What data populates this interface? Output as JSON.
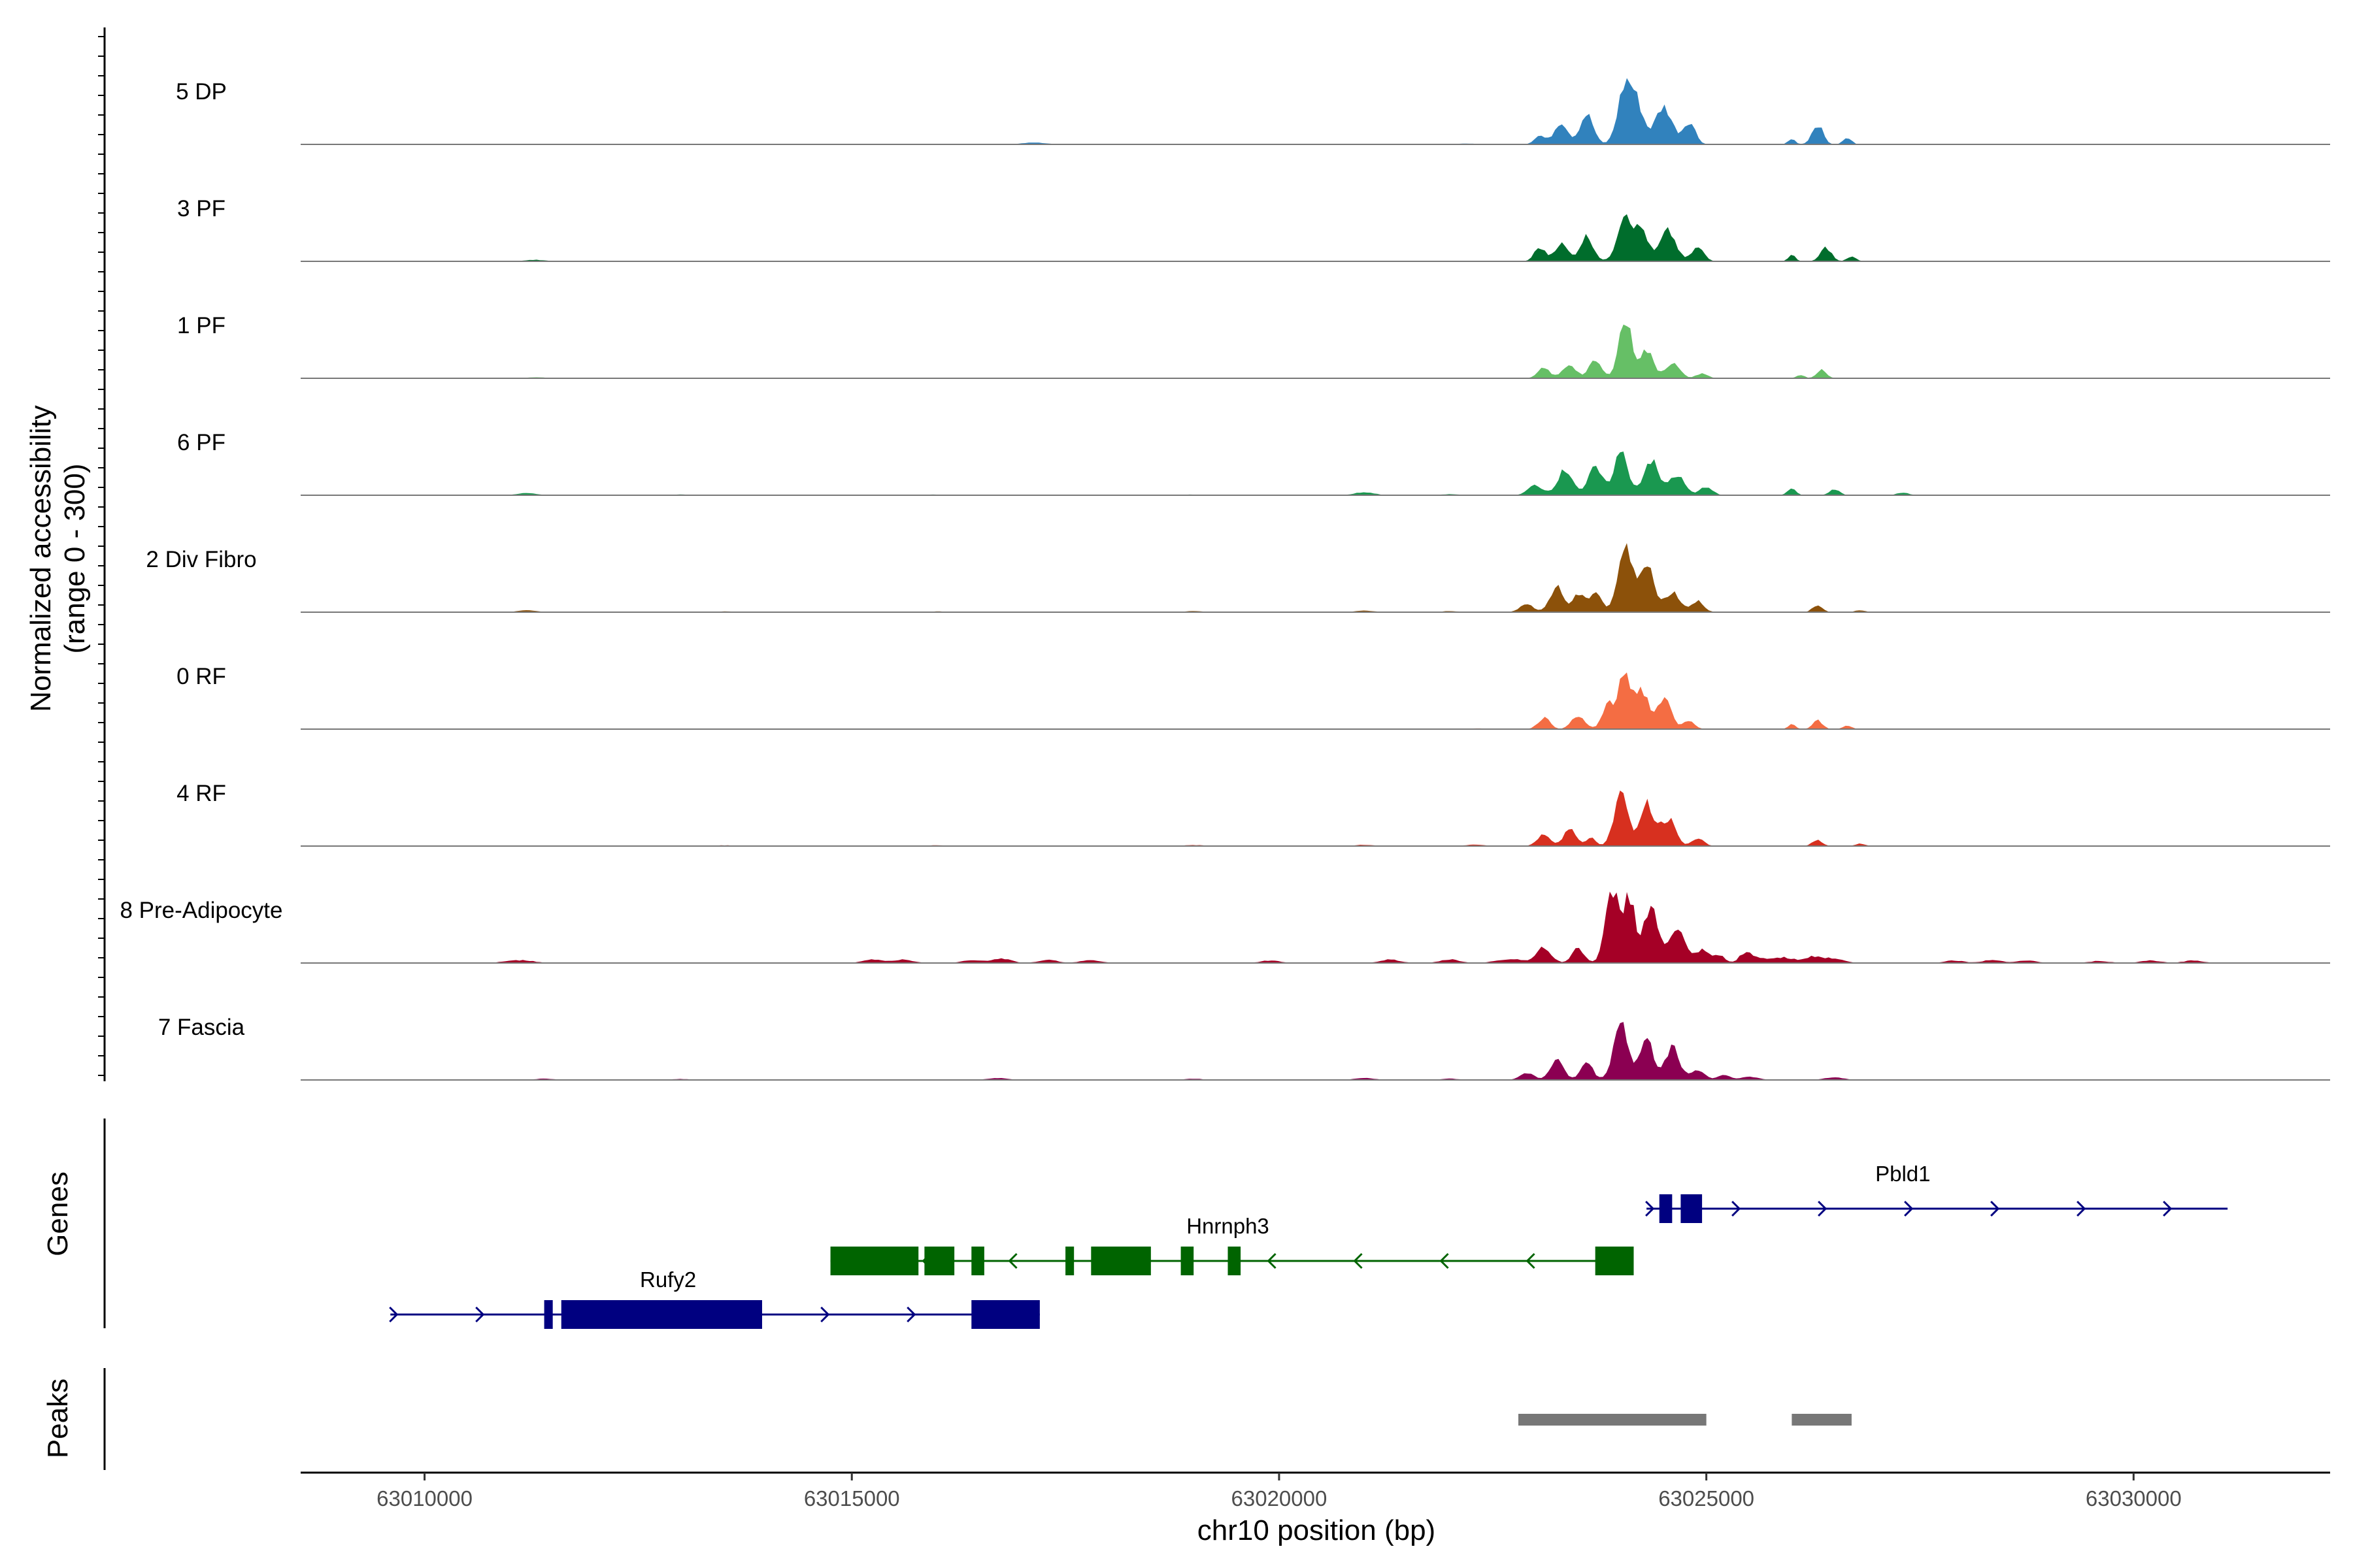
{
  "chart_data": {
    "type": "coverage",
    "ylabel": [
      "Normalized accessibility",
      "(range 0 - 300)"
    ],
    "y_range": [
      0,
      300
    ],
    "xlabel": "chr10 position (bp)",
    "x_range": [
      63008550,
      63032300
    ],
    "x_ticks": [
      63010000,
      63015000,
      63020000,
      63025000,
      63030000
    ],
    "tracks": [
      {
        "name": "5 DP",
        "color": "#3182bd",
        "baseline": [
          [
            63010000,
            1
          ],
          [
            63013500,
            1
          ],
          [
            63017000,
            2
          ],
          [
            63017150,
            6
          ],
          [
            63017300,
            1
          ],
          [
            63021000,
            2
          ],
          [
            63022200,
            3
          ]
        ],
        "peaks": [
          [
            63023050,
            35,
            90
          ],
          [
            63023300,
            90,
            110
          ],
          [
            63023600,
            120,
            110
          ],
          [
            63024050,
            230,
            120
          ],
          [
            63024200,
            130,
            110
          ],
          [
            63024500,
            150,
            140
          ],
          [
            63024800,
            90,
            100
          ],
          [
            63026000,
            22,
            60
          ],
          [
            63026300,
            80,
            90
          ],
          [
            63026650,
            25,
            70
          ]
        ]
      },
      {
        "name": "3 PF",
        "color": "#006d2c",
        "baseline": [
          [
            63010000,
            1
          ],
          [
            63011300,
            6
          ],
          [
            63013500,
            1
          ],
          [
            63016000,
            2
          ],
          [
            63019000,
            1
          ],
          [
            63022000,
            2
          ]
        ],
        "peaks": [
          [
            63023050,
            55,
            90
          ],
          [
            63023300,
            70,
            110
          ],
          [
            63023600,
            100,
            110
          ],
          [
            63024050,
            200,
            120
          ],
          [
            63024250,
            120,
            100
          ],
          [
            63024550,
            120,
            130
          ],
          [
            63024900,
            55,
            100
          ],
          [
            63026000,
            25,
            60
          ],
          [
            63026400,
            55,
            90
          ],
          [
            63026700,
            20,
            70
          ]
        ]
      },
      {
        "name": "1 PF",
        "color": "#66bf66",
        "baseline": [
          [
            63010000,
            2
          ],
          [
            63011300,
            4
          ],
          [
            63013500,
            2
          ],
          [
            63016000,
            2
          ],
          [
            63019000,
            2
          ],
          [
            63021000,
            2
          ]
        ],
        "peaks": [
          [
            63023100,
            40,
            100
          ],
          [
            63023400,
            55,
            110
          ],
          [
            63023700,
            70,
            100
          ],
          [
            63024050,
            230,
            110
          ],
          [
            63024300,
            110,
            110
          ],
          [
            63024600,
            60,
            120
          ],
          [
            63024950,
            20,
            90
          ],
          [
            63026100,
            15,
            60
          ],
          [
            63026350,
            35,
            80
          ]
        ]
      },
      {
        "name": "6 PF",
        "color": "#1a9850",
        "baseline": [
          [
            63010000,
            2
          ],
          [
            63011200,
            8
          ],
          [
            63013000,
            3
          ],
          [
            63016000,
            3
          ],
          [
            63019000,
            3
          ],
          [
            63021000,
            12
          ],
          [
            63022000,
            4
          ]
        ],
        "peaks": [
          [
            63023000,
            40,
            120
          ],
          [
            63023350,
            100,
            130
          ],
          [
            63023700,
            110,
            110
          ],
          [
            63024000,
            170,
            120
          ],
          [
            63024350,
            140,
            120
          ],
          [
            63024650,
            80,
            130
          ],
          [
            63025000,
            35,
            100
          ],
          [
            63026000,
            30,
            70
          ],
          [
            63026500,
            25,
            80
          ],
          [
            63027300,
            10,
            100
          ]
        ]
      },
      {
        "name": "2 Div Fibro",
        "color": "#8c510a",
        "baseline": [
          [
            63010000,
            2
          ],
          [
            63011200,
            7
          ],
          [
            63013500,
            3
          ],
          [
            63016000,
            3
          ],
          [
            63019000,
            4
          ],
          [
            63021000,
            6
          ],
          [
            63022000,
            4
          ]
        ],
        "peaks": [
          [
            63022900,
            30,
            120
          ],
          [
            63023250,
            100,
            110
          ],
          [
            63023500,
            70,
            90
          ],
          [
            63023700,
            85,
            100
          ],
          [
            63024050,
            250,
            120
          ],
          [
            63024300,
            210,
            110
          ],
          [
            63024600,
            80,
            130
          ],
          [
            63024900,
            45,
            100
          ],
          [
            63026300,
            28,
            80
          ],
          [
            63026800,
            8,
            80
          ]
        ]
      },
      {
        "name": "0 RF",
        "color": "#f46d43",
        "baseline": [
          [
            63010500,
            1
          ],
          [
            63013500,
            2
          ],
          [
            63016000,
            2
          ],
          [
            63019000,
            2
          ],
          [
            63021000,
            2
          ],
          [
            63022300,
            3
          ]
        ],
        "peaks": [
          [
            63023100,
            45,
            100
          ],
          [
            63023500,
            50,
            110
          ],
          [
            63023850,
            90,
            100
          ],
          [
            63024050,
            220,
            110
          ],
          [
            63024250,
            150,
            100
          ],
          [
            63024500,
            120,
            120
          ],
          [
            63024800,
            35,
            90
          ],
          [
            63026000,
            20,
            60
          ],
          [
            63026300,
            35,
            80
          ],
          [
            63026650,
            15,
            70
          ]
        ]
      },
      {
        "name": "4 RF",
        "color": "#d7301f",
        "baseline": [
          [
            63010000,
            2
          ],
          [
            63013500,
            3
          ],
          [
            63016000,
            3
          ],
          [
            63019000,
            4
          ],
          [
            63021000,
            5
          ],
          [
            63022300,
            6
          ]
        ],
        "peaks": [
          [
            63023100,
            45,
            110
          ],
          [
            63023400,
            70,
            100
          ],
          [
            63023650,
            35,
            80
          ],
          [
            63024000,
            220,
            110
          ],
          [
            63024300,
            170,
            110
          ],
          [
            63024550,
            110,
            120
          ],
          [
            63024900,
            30,
            100
          ],
          [
            63026300,
            25,
            80
          ],
          [
            63026800,
            10,
            80
          ]
        ]
      },
      {
        "name": "8 Pre-Adipocyte",
        "color": "#a50026",
        "baseline": [
          [
            63011000,
            8
          ],
          [
            63011200,
            8
          ],
          [
            63015250,
            14
          ],
          [
            63015600,
            14
          ],
          [
            63016400,
            12
          ],
          [
            63016750,
            18
          ],
          [
            63017300,
            12
          ],
          [
            63017800,
            12
          ],
          [
            63019900,
            10
          ],
          [
            63021300,
            14
          ],
          [
            63022000,
            14
          ],
          [
            63022600,
            10
          ],
          [
            63022800,
            12
          ],
          [
            63025600,
            20
          ],
          [
            63025900,
            22
          ],
          [
            63026250,
            25
          ],
          [
            63026500,
            16
          ],
          [
            63027900,
            10
          ],
          [
            63028350,
            12
          ],
          [
            63028750,
            10
          ],
          [
            63029600,
            8
          ],
          [
            63030200,
            10
          ],
          [
            63030700,
            10
          ]
        ],
        "peaks": [
          [
            63023100,
            60,
            120
          ],
          [
            63023500,
            60,
            100
          ],
          [
            63023900,
            280,
            110
          ],
          [
            63024100,
            260,
            100
          ],
          [
            63024350,
            230,
            110
          ],
          [
            63024650,
            140,
            130
          ],
          [
            63024950,
            50,
            110
          ],
          [
            63025150,
            30,
            90
          ],
          [
            63025450,
            35,
            90
          ]
        ]
      },
      {
        "name": "7 Fascia",
        "color": "#8b0052",
        "baseline": [
          [
            63010000,
            2
          ],
          [
            63011400,
            5
          ],
          [
            63013000,
            4
          ],
          [
            63016700,
            8
          ],
          [
            63019000,
            5
          ],
          [
            63021000,
            8
          ],
          [
            63022000,
            5
          ],
          [
            63025500,
            12
          ],
          [
            63026500,
            10
          ]
        ],
        "peaks": [
          [
            63022900,
            30,
            110
          ],
          [
            63023250,
            80,
            110
          ],
          [
            63023600,
            70,
            100
          ],
          [
            63024000,
            230,
            120
          ],
          [
            63024300,
            160,
            110
          ],
          [
            63024600,
            130,
            120
          ],
          [
            63024900,
            40,
            110
          ],
          [
            63025200,
            20,
            100
          ]
        ]
      }
    ],
    "gene_track": {
      "label": "Genes",
      "genes": [
        {
          "name": "Pbld1",
          "strand": "+",
          "color": "#000080",
          "start": 63024300,
          "end": 63031100,
          "exons": [
            [
              63024450,
              63024600
            ],
            [
              63024700,
              63024950
            ]
          ]
        },
        {
          "name": "Hnrnph3",
          "strand": "-",
          "color": "#006400",
          "start": 63014750,
          "end": 63024150,
          "exons": [
            [
              63014750,
              63015780
            ],
            [
              63015850,
              63016200
            ],
            [
              63016400,
              63016550
            ],
            [
              63017500,
              63017600
            ],
            [
              63017800,
              63018500
            ],
            [
              63018850,
              63019000
            ],
            [
              63019400,
              63019550
            ],
            [
              63023700,
              63024150
            ]
          ]
        },
        {
          "name": "Rufy2",
          "strand": "+",
          "color": "#000080",
          "start": 63009600,
          "end": 63017200,
          "exons": [
            [
              63011400,
              63011500
            ],
            [
              63011600,
              63013950
            ],
            [
              63016400,
              63017200
            ]
          ]
        }
      ]
    },
    "peak_track": {
      "label": "Peaks",
      "color": "#777777",
      "regions": [
        [
          63022800,
          63025000
        ],
        [
          63026000,
          63026700
        ]
      ]
    }
  }
}
